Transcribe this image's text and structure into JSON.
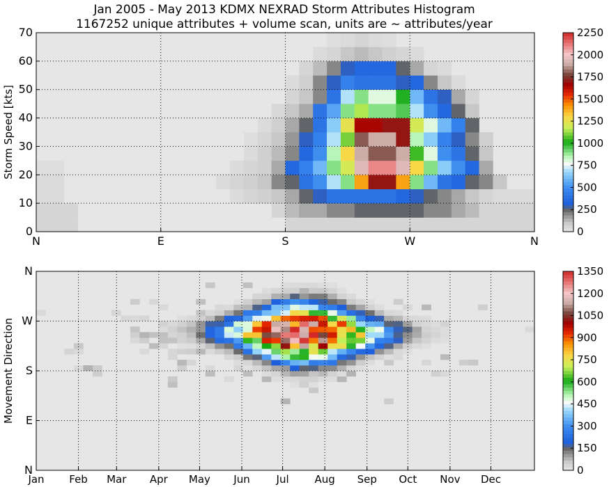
{
  "title_line1": "Jan 2005 - May 2013 KDMX NEXRAD Storm Attributes Histogram",
  "title_line2": "1167252 unique attributes + volume scan, units are ~ attributes/year",
  "chart_data": [
    {
      "type": "heatmap",
      "title": "",
      "xlabel": "",
      "ylabel": "Storm Speed [kts]",
      "x_tick_labels": [
        "N",
        "E",
        "S",
        "W",
        "N"
      ],
      "y_tick_labels": [
        "0",
        "10",
        "20",
        "30",
        "40",
        "50",
        "60",
        "70"
      ],
      "x_range_deg": [
        0,
        360
      ],
      "x_bin_deg": 10,
      "ylim": [
        0,
        70
      ],
      "y_bin_kts": 5,
      "grid": true,
      "colorbar_ticks": [
        "0",
        "250",
        "500",
        "750",
        "1000",
        "1250",
        "1500",
        "1750",
        "2000",
        "2250"
      ],
      "colorbar_range": [
        0,
        2250
      ],
      "rows_note": "rows from speed bin 0-5 (first) up to 65-70; columns from direction 0-10 deg upward",
      "values": [
        [
          60,
          60,
          60,
          0,
          0,
          0,
          0,
          0,
          0,
          0,
          0,
          0,
          0,
          0,
          0,
          0,
          0,
          0,
          60,
          60,
          60,
          60,
          60,
          60,
          60,
          60,
          60,
          60,
          60,
          60,
          60,
          60,
          60,
          60,
          60,
          60
        ],
        [
          60,
          60,
          60,
          0,
          0,
          0,
          0,
          0,
          0,
          0,
          0,
          0,
          0,
          0,
          0,
          0,
          0,
          60,
          120,
          150,
          150,
          200,
          200,
          250,
          250,
          250,
          250,
          250,
          200,
          200,
          150,
          120,
          60,
          60,
          60,
          60
        ],
        [
          40,
          40,
          0,
          0,
          0,
          0,
          0,
          0,
          0,
          0,
          0,
          0,
          0,
          0,
          40,
          60,
          80,
          100,
          150,
          250,
          300,
          400,
          400,
          400,
          400,
          400,
          350,
          300,
          250,
          200,
          150,
          100,
          60,
          40,
          40,
          40
        ],
        [
          40,
          40,
          0,
          0,
          0,
          0,
          0,
          0,
          0,
          0,
          0,
          0,
          0,
          40,
          60,
          80,
          100,
          200,
          250,
          400,
          500,
          700,
          900,
          1400,
          1700,
          1700,
          1400,
          900,
          600,
          400,
          350,
          250,
          200,
          100,
          0,
          0
        ],
        [
          30,
          30,
          0,
          0,
          0,
          0,
          0,
          0,
          0,
          0,
          0,
          0,
          0,
          0,
          40,
          60,
          80,
          150,
          350,
          450,
          600,
          900,
          1200,
          1950,
          2100,
          2100,
          1950,
          1300,
          900,
          650,
          500,
          350,
          150,
          0,
          0,
          0
        ],
        [
          0,
          0,
          0,
          0,
          0,
          0,
          0,
          0,
          0,
          0,
          0,
          0,
          0,
          0,
          0,
          40,
          80,
          120,
          200,
          350,
          500,
          850,
          1300,
          1900,
          1800,
          1800,
          1900,
          1050,
          800,
          500,
          400,
          250,
          100,
          0,
          0,
          0
        ],
        [
          0,
          0,
          0,
          0,
          0,
          0,
          0,
          0,
          0,
          0,
          0,
          0,
          0,
          0,
          0,
          30,
          60,
          100,
          180,
          300,
          450,
          700,
          1100,
          1800,
          1900,
          1900,
          1700,
          850,
          650,
          450,
          300,
          200,
          80,
          0,
          0,
          0
        ],
        [
          0,
          0,
          0,
          0,
          0,
          0,
          0,
          0,
          0,
          0,
          0,
          0,
          0,
          0,
          0,
          0,
          40,
          80,
          150,
          250,
          400,
          650,
          1250,
          1650,
          1650,
          1700,
          1700,
          1200,
          800,
          600,
          450,
          250,
          0,
          0,
          0,
          0
        ],
        [
          0,
          0,
          0,
          0,
          0,
          0,
          0,
          0,
          0,
          0,
          0,
          0,
          0,
          0,
          0,
          0,
          0,
          50,
          100,
          150,
          400,
          550,
          900,
          1150,
          900,
          900,
          950,
          700,
          500,
          350,
          250,
          100,
          0,
          0,
          0,
          0
        ],
        [
          0,
          0,
          0,
          0,
          0,
          0,
          0,
          0,
          0,
          0,
          0,
          0,
          0,
          0,
          0,
          0,
          0,
          0,
          60,
          100,
          200,
          400,
          700,
          900,
          800,
          800,
          1000,
          600,
          400,
          300,
          150,
          60,
          0,
          0,
          0,
          0
        ],
        [
          0,
          0,
          0,
          0,
          0,
          0,
          0,
          0,
          0,
          0,
          0,
          0,
          0,
          0,
          0,
          0,
          0,
          0,
          40,
          80,
          200,
          300,
          450,
          400,
          400,
          400,
          300,
          350,
          200,
          100,
          40,
          0,
          0,
          0,
          0,
          0
        ],
        [
          0,
          0,
          0,
          0,
          0,
          0,
          0,
          0,
          0,
          0,
          0,
          0,
          0,
          0,
          0,
          0,
          0,
          0,
          0,
          60,
          120,
          200,
          300,
          350,
          350,
          350,
          250,
          150,
          60,
          40,
          0,
          0,
          0,
          0,
          0,
          0
        ],
        [
          0,
          0,
          0,
          0,
          0,
          0,
          0,
          0,
          0,
          0,
          0,
          0,
          0,
          0,
          0,
          0,
          0,
          0,
          0,
          0,
          40,
          60,
          100,
          120,
          100,
          80,
          60,
          40,
          0,
          0,
          0,
          0,
          0,
          0,
          0,
          0
        ],
        [
          0,
          0,
          0,
          0,
          0,
          0,
          0,
          0,
          0,
          0,
          0,
          0,
          0,
          0,
          0,
          0,
          0,
          0,
          0,
          0,
          0,
          30,
          40,
          60,
          40,
          30,
          0,
          0,
          0,
          0,
          0,
          0,
          0,
          0,
          0,
          0
        ]
      ]
    },
    {
      "type": "heatmap",
      "title": "",
      "xlabel": "",
      "ylabel": "Movement Direction",
      "x_tick_labels": [
        "Jan",
        "Feb",
        "Mar",
        "Apr",
        "May",
        "Jun",
        "Jul",
        "Aug",
        "Sep",
        "Oct",
        "Nov",
        "Dec"
      ],
      "y_tick_labels": [
        "N",
        "E",
        "S",
        "W",
        "N"
      ],
      "x_range_days": [
        0,
        366
      ],
      "x_bin_days": 7,
      "ylim_deg": [
        0,
        360
      ],
      "y_bin_deg": 10,
      "grid": true,
      "colorbar_ticks": [
        "0",
        "150",
        "300",
        "450",
        "600",
        "750",
        "900",
        "1050",
        "1200",
        "1350"
      ],
      "colorbar_range": [
        0,
        1400
      ],
      "rows_note": "rows from direction 0-10 deg (first, bottom) up to 350-360; columns are weekly bins from Jan 1"
    }
  ]
}
